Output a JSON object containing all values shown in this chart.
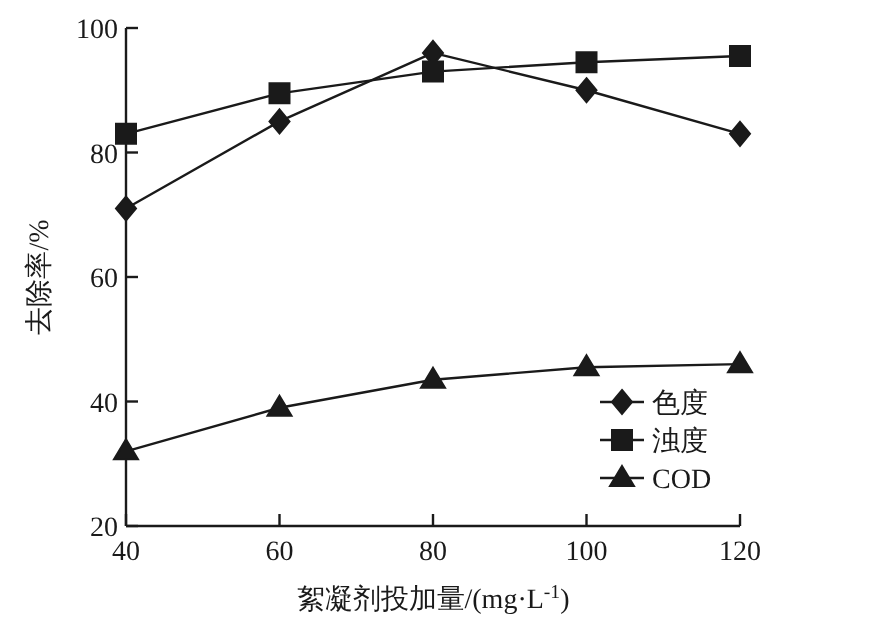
{
  "chart_data": {
    "type": "line",
    "xlabel": "絮凝剂投加量/(mg·L$^{-1}$)",
    "ylabel": "去除率/%",
    "x": [
      40,
      60,
      80,
      100,
      120
    ],
    "series": [
      {
        "name": "色度",
        "color": "#1a1a1a",
        "marker": "diamond",
        "values": [
          71,
          85,
          96,
          90,
          83
        ]
      },
      {
        "name": "浊度",
        "color": "#1a1a1a",
        "marker": "square",
        "values": [
          83,
          89.5,
          93,
          94.5,
          95.5
        ]
      },
      {
        "name": "COD",
        "color": "#1a1a1a",
        "marker": "triangle",
        "values": [
          32,
          39,
          43.5,
          45.5,
          46
        ]
      }
    ],
    "xlim": [
      40,
      120
    ],
    "ylim": [
      20,
      100
    ],
    "xticks": [
      40,
      60,
      80,
      100,
      120
    ],
    "yticks": [
      20,
      40,
      60,
      80,
      100
    ],
    "legend": "bottom right",
    "grid": false,
    "line_style": "solid"
  }
}
